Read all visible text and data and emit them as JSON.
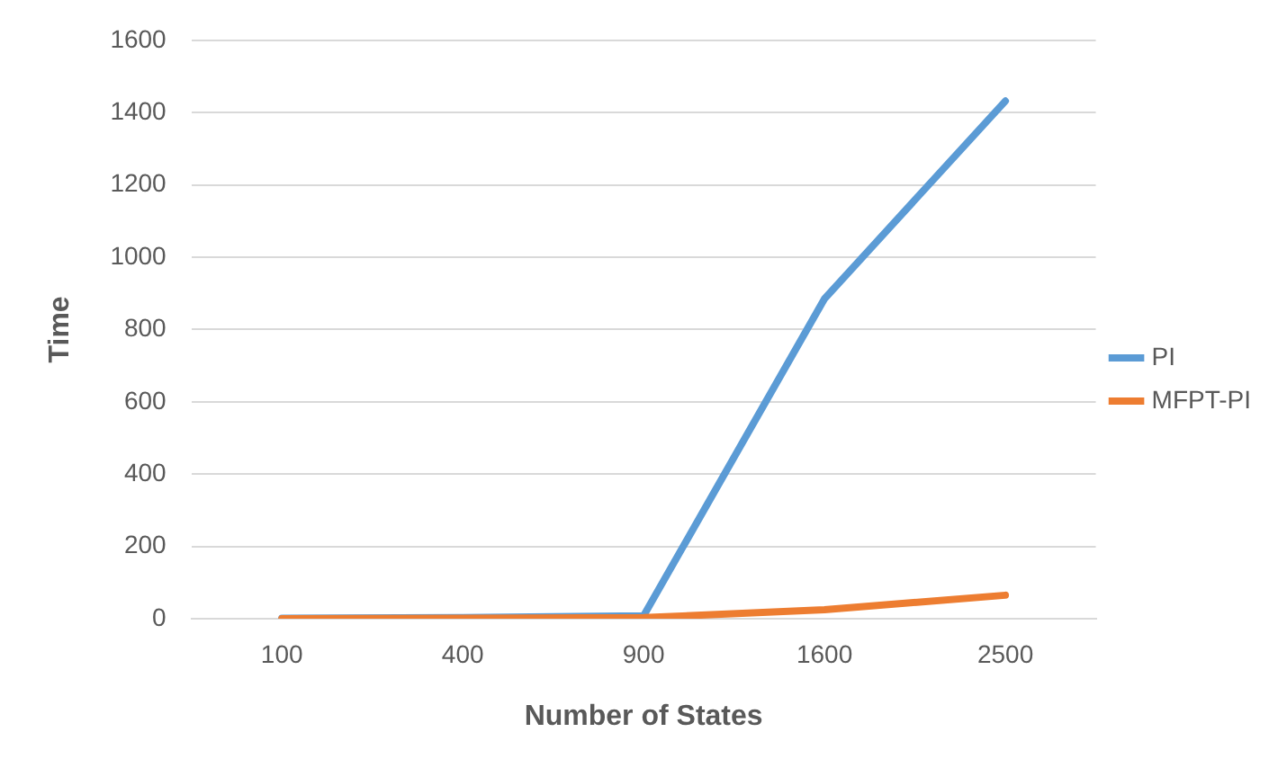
{
  "chart_data": {
    "type": "line",
    "xlabel": "Number of States",
    "ylabel": "Time",
    "categories": [
      "100",
      "400",
      "900",
      "1600",
      "2500"
    ],
    "series": [
      {
        "name": "PI",
        "color": "#5b9bd5",
        "values": [
          1,
          3,
          8,
          885,
          1432
        ]
      },
      {
        "name": "MFPT-PI",
        "color": "#ed7d31",
        "values": [
          0,
          1,
          3,
          25,
          65
        ]
      }
    ],
    "ylim": [
      0,
      1600
    ],
    "yticks": [
      0,
      200,
      400,
      600,
      800,
      1000,
      1200,
      1400,
      1600
    ],
    "grid": "y",
    "legend": "right",
    "marker": "none"
  }
}
